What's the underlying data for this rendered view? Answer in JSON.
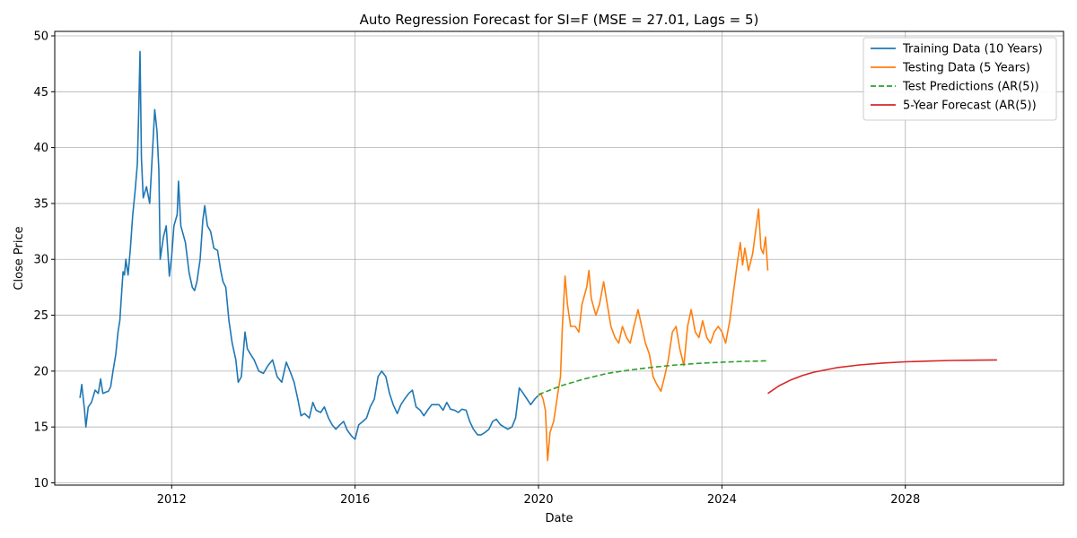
{
  "chart_data": {
    "type": "line",
    "title": "Auto Regression Forecast for SI=F (MSE = 27.01, Lags = 5)",
    "xlabel": "Date",
    "ylabel": "Close Price",
    "xlim": [
      2009.45,
      2031.45
    ],
    "ylim": [
      9.8,
      50.4
    ],
    "x_ticks": [
      2012,
      2016,
      2020,
      2024,
      2028
    ],
    "x_tick_labels": [
      "2012",
      "2016",
      "2020",
      "2024",
      "2028"
    ],
    "y_ticks": [
      10,
      15,
      20,
      25,
      30,
      35,
      40,
      45,
      50
    ],
    "y_tick_labels": [
      "10",
      "15",
      "20",
      "25",
      "30",
      "35",
      "40",
      "45",
      "50"
    ],
    "grid": true,
    "legend_position": "top-right",
    "series": [
      {
        "name": "Training Data (10 Years)",
        "color": "#1f77b4",
        "style": "solid",
        "points": [
          [
            2010.0,
            17.6
          ],
          [
            2010.04,
            18.8
          ],
          [
            2010.1,
            16.5
          ],
          [
            2010.13,
            15.0
          ],
          [
            2010.18,
            16.8
          ],
          [
            2010.25,
            17.2
          ],
          [
            2010.33,
            18.3
          ],
          [
            2010.4,
            18.0
          ],
          [
            2010.45,
            19.3
          ],
          [
            2010.5,
            18.0
          ],
          [
            2010.55,
            18.1
          ],
          [
            2010.62,
            18.2
          ],
          [
            2010.67,
            18.6
          ],
          [
            2010.72,
            20.0
          ],
          [
            2010.78,
            21.5
          ],
          [
            2010.83,
            23.5
          ],
          [
            2010.87,
            24.5
          ],
          [
            2010.9,
            26.5
          ],
          [
            2010.94,
            28.9
          ],
          [
            2010.97,
            28.6
          ],
          [
            2011.0,
            30.0
          ],
          [
            2011.05,
            28.6
          ],
          [
            2011.1,
            31.0
          ],
          [
            2011.15,
            34.0
          ],
          [
            2011.2,
            36.0
          ],
          [
            2011.25,
            38.5
          ],
          [
            2011.28,
            43.0
          ],
          [
            2011.31,
            48.6
          ],
          [
            2011.34,
            39.0
          ],
          [
            2011.38,
            35.5
          ],
          [
            2011.45,
            36.5
          ],
          [
            2011.52,
            35.0
          ],
          [
            2011.58,
            39.5
          ],
          [
            2011.63,
            43.4
          ],
          [
            2011.68,
            41.5
          ],
          [
            2011.72,
            38.0
          ],
          [
            2011.75,
            30.0
          ],
          [
            2011.82,
            32.0
          ],
          [
            2011.88,
            33.0
          ],
          [
            2011.95,
            28.5
          ],
          [
            2012.0,
            30.3
          ],
          [
            2012.05,
            33.0
          ],
          [
            2012.12,
            34.0
          ],
          [
            2012.15,
            37.0
          ],
          [
            2012.2,
            33.0
          ],
          [
            2012.3,
            31.5
          ],
          [
            2012.38,
            28.8
          ],
          [
            2012.45,
            27.5
          ],
          [
            2012.5,
            27.2
          ],
          [
            2012.55,
            28.0
          ],
          [
            2012.62,
            30.0
          ],
          [
            2012.68,
            33.5
          ],
          [
            2012.72,
            34.8
          ],
          [
            2012.78,
            33.0
          ],
          [
            2012.85,
            32.5
          ],
          [
            2012.92,
            31.0
          ],
          [
            2013.0,
            30.8
          ],
          [
            2013.07,
            29.0
          ],
          [
            2013.12,
            28.0
          ],
          [
            2013.18,
            27.5
          ],
          [
            2013.25,
            24.5
          ],
          [
            2013.32,
            22.5
          ],
          [
            2013.4,
            21.0
          ],
          [
            2013.45,
            19.0
          ],
          [
            2013.52,
            19.5
          ],
          [
            2013.6,
            23.5
          ],
          [
            2013.65,
            22.0
          ],
          [
            2013.72,
            21.5
          ],
          [
            2013.8,
            21.0
          ],
          [
            2013.9,
            20.0
          ],
          [
            2014.0,
            19.8
          ],
          [
            2014.1,
            20.5
          ],
          [
            2014.2,
            21.0
          ],
          [
            2014.3,
            19.5
          ],
          [
            2014.4,
            19.0
          ],
          [
            2014.5,
            20.8
          ],
          [
            2014.58,
            20.0
          ],
          [
            2014.67,
            19.0
          ],
          [
            2014.75,
            17.5
          ],
          [
            2014.82,
            16.0
          ],
          [
            2014.9,
            16.2
          ],
          [
            2015.0,
            15.8
          ],
          [
            2015.08,
            17.2
          ],
          [
            2015.15,
            16.5
          ],
          [
            2015.25,
            16.3
          ],
          [
            2015.33,
            16.8
          ],
          [
            2015.42,
            15.8
          ],
          [
            2015.5,
            15.2
          ],
          [
            2015.58,
            14.8
          ],
          [
            2015.67,
            15.2
          ],
          [
            2015.75,
            15.5
          ],
          [
            2015.83,
            14.7
          ],
          [
            2015.92,
            14.2
          ],
          [
            2016.0,
            13.9
          ],
          [
            2016.08,
            15.2
          ],
          [
            2016.17,
            15.5
          ],
          [
            2016.25,
            15.8
          ],
          [
            2016.33,
            16.8
          ],
          [
            2016.42,
            17.5
          ],
          [
            2016.5,
            19.5
          ],
          [
            2016.58,
            20.0
          ],
          [
            2016.67,
            19.5
          ],
          [
            2016.75,
            18.0
          ],
          [
            2016.83,
            17.0
          ],
          [
            2016.92,
            16.2
          ],
          [
            2017.0,
            17.0
          ],
          [
            2017.08,
            17.5
          ],
          [
            2017.17,
            18.0
          ],
          [
            2017.25,
            18.3
          ],
          [
            2017.33,
            16.8
          ],
          [
            2017.42,
            16.5
          ],
          [
            2017.5,
            16.0
          ],
          [
            2017.58,
            16.5
          ],
          [
            2017.67,
            17.0
          ],
          [
            2017.75,
            17.0
          ],
          [
            2017.83,
            17.0
          ],
          [
            2017.92,
            16.5
          ],
          [
            2018.0,
            17.2
          ],
          [
            2018.08,
            16.6
          ],
          [
            2018.17,
            16.5
          ],
          [
            2018.25,
            16.3
          ],
          [
            2018.33,
            16.6
          ],
          [
            2018.42,
            16.5
          ],
          [
            2018.5,
            15.5
          ],
          [
            2018.58,
            14.8
          ],
          [
            2018.67,
            14.3
          ],
          [
            2018.75,
            14.3
          ],
          [
            2018.83,
            14.5
          ],
          [
            2018.92,
            14.8
          ],
          [
            2019.0,
            15.5
          ],
          [
            2019.08,
            15.7
          ],
          [
            2019.17,
            15.2
          ],
          [
            2019.25,
            15.0
          ],
          [
            2019.33,
            14.8
          ],
          [
            2019.42,
            15.0
          ],
          [
            2019.5,
            15.8
          ],
          [
            2019.58,
            18.5
          ],
          [
            2019.67,
            18.0
          ],
          [
            2019.75,
            17.5
          ],
          [
            2019.83,
            17.0
          ],
          [
            2019.92,
            17.5
          ],
          [
            2019.99,
            17.8
          ]
        ]
      },
      {
        "name": "Testing Data (5 Years)",
        "color": "#ff7f0e",
        "style": "solid",
        "points": [
          [
            2020.0,
            17.8
          ],
          [
            2020.05,
            18.0
          ],
          [
            2020.1,
            17.5
          ],
          [
            2020.15,
            16.5
          ],
          [
            2020.2,
            12.0
          ],
          [
            2020.25,
            14.5
          ],
          [
            2020.33,
            15.5
          ],
          [
            2020.42,
            18.0
          ],
          [
            2020.48,
            19.5
          ],
          [
            2020.52,
            24.0
          ],
          [
            2020.58,
            28.5
          ],
          [
            2020.63,
            26.0
          ],
          [
            2020.7,
            24.0
          ],
          [
            2020.8,
            24.0
          ],
          [
            2020.88,
            23.5
          ],
          [
            2020.95,
            26.0
          ],
          [
            2021.05,
            27.5
          ],
          [
            2021.1,
            29.0
          ],
          [
            2021.15,
            26.5
          ],
          [
            2021.25,
            25.0
          ],
          [
            2021.33,
            26.0
          ],
          [
            2021.42,
            28.0
          ],
          [
            2021.5,
            26.0
          ],
          [
            2021.58,
            24.0
          ],
          [
            2021.67,
            23.0
          ],
          [
            2021.75,
            22.5
          ],
          [
            2021.83,
            24.0
          ],
          [
            2021.92,
            23.0
          ],
          [
            2022.0,
            22.5
          ],
          [
            2022.08,
            24.0
          ],
          [
            2022.17,
            25.5
          ],
          [
            2022.25,
            24.0
          ],
          [
            2022.33,
            22.5
          ],
          [
            2022.42,
            21.5
          ],
          [
            2022.5,
            19.5
          ],
          [
            2022.58,
            18.8
          ],
          [
            2022.67,
            18.2
          ],
          [
            2022.75,
            19.5
          ],
          [
            2022.83,
            21.0
          ],
          [
            2022.92,
            23.5
          ],
          [
            2023.0,
            24.0
          ],
          [
            2023.08,
            22.0
          ],
          [
            2023.17,
            20.5
          ],
          [
            2023.25,
            24.0
          ],
          [
            2023.33,
            25.5
          ],
          [
            2023.42,
            23.5
          ],
          [
            2023.5,
            23.0
          ],
          [
            2023.58,
            24.5
          ],
          [
            2023.67,
            23.0
          ],
          [
            2023.75,
            22.5
          ],
          [
            2023.83,
            23.5
          ],
          [
            2023.92,
            24.0
          ],
          [
            2024.0,
            23.5
          ],
          [
            2024.08,
            22.5
          ],
          [
            2024.17,
            24.5
          ],
          [
            2024.25,
            27.0
          ],
          [
            2024.33,
            29.5
          ],
          [
            2024.4,
            31.5
          ],
          [
            2024.45,
            29.5
          ],
          [
            2024.5,
            31.0
          ],
          [
            2024.58,
            29.0
          ],
          [
            2024.67,
            30.5
          ],
          [
            2024.75,
            33.0
          ],
          [
            2024.8,
            34.5
          ],
          [
            2024.85,
            31.0
          ],
          [
            2024.9,
            30.5
          ],
          [
            2024.95,
            32.0
          ],
          [
            2025.0,
            29.0
          ]
        ]
      },
      {
        "name": "Test Predictions (AR(5))",
        "color": "#2ca02c",
        "style": "dashed",
        "points": [
          [
            2020.0,
            17.9
          ],
          [
            2020.5,
            18.7
          ],
          [
            2021.0,
            19.3
          ],
          [
            2021.5,
            19.8
          ],
          [
            2022.0,
            20.1
          ],
          [
            2022.5,
            20.35
          ],
          [
            2023.0,
            20.55
          ],
          [
            2023.5,
            20.7
          ],
          [
            2024.0,
            20.8
          ],
          [
            2024.5,
            20.87
          ],
          [
            2025.0,
            20.92
          ]
        ]
      },
      {
        "name": "5-Year Forecast (AR(5))",
        "color": "#d62728",
        "style": "solid",
        "points": [
          [
            2025.0,
            18.0
          ],
          [
            2025.25,
            18.7
          ],
          [
            2025.5,
            19.2
          ],
          [
            2025.75,
            19.6
          ],
          [
            2026.0,
            19.9
          ],
          [
            2026.5,
            20.3
          ],
          [
            2027.0,
            20.55
          ],
          [
            2027.5,
            20.72
          ],
          [
            2028.0,
            20.83
          ],
          [
            2028.5,
            20.9
          ],
          [
            2029.0,
            20.95
          ],
          [
            2029.5,
            20.98
          ],
          [
            2030.0,
            21.0
          ]
        ]
      }
    ]
  }
}
